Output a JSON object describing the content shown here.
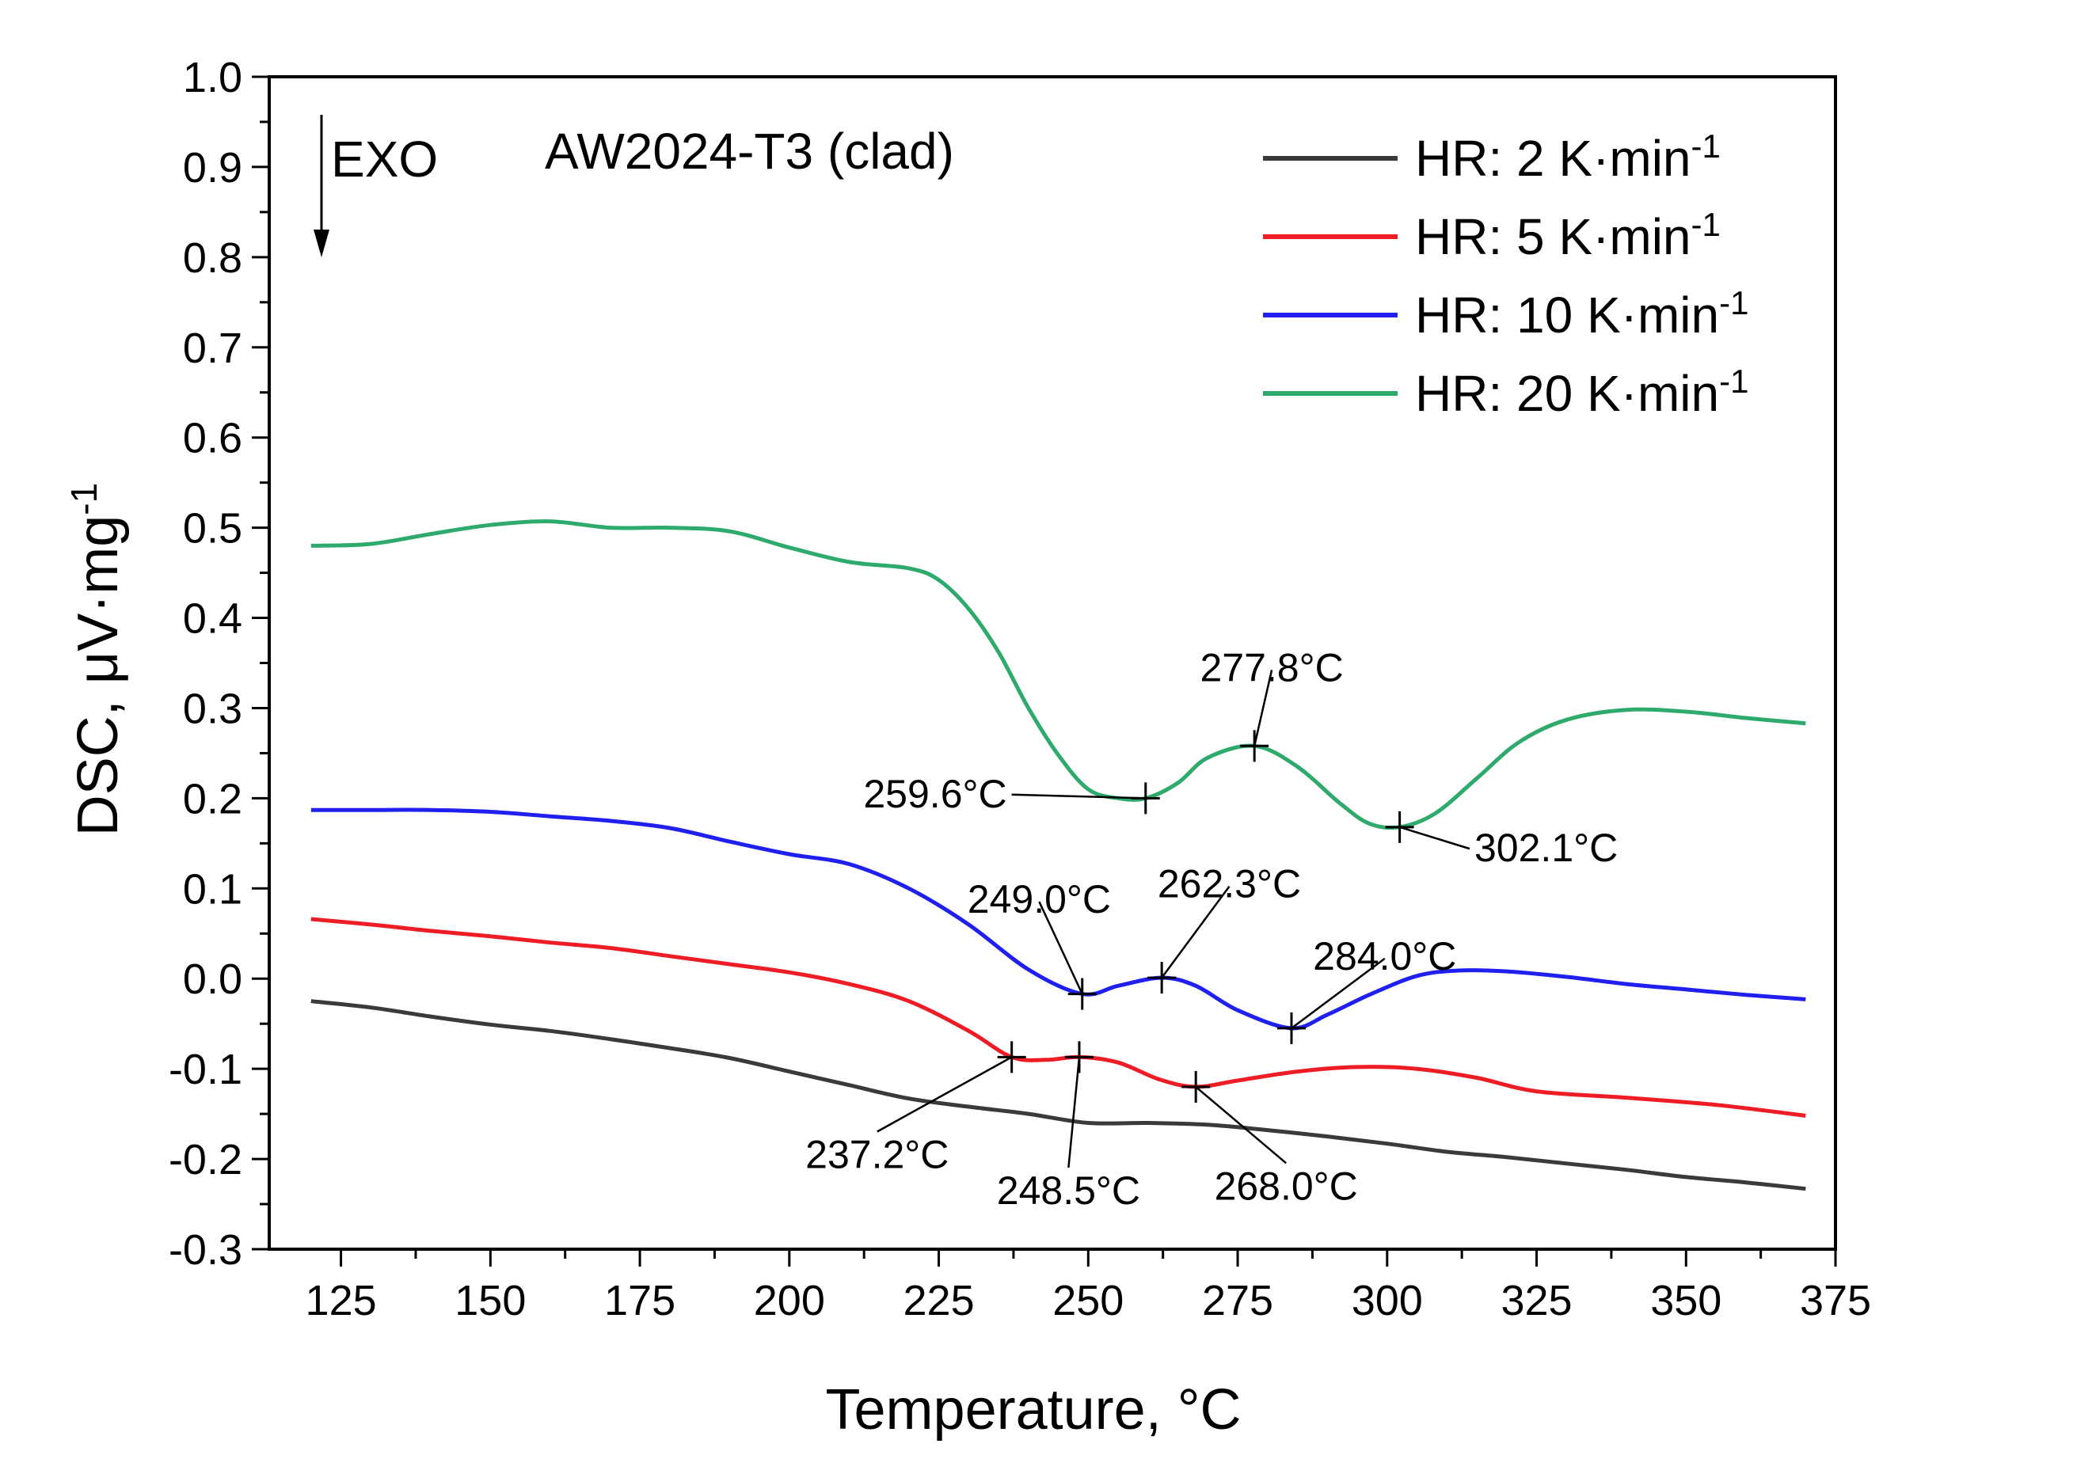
{
  "chart_data": {
    "type": "line",
    "title": "AW2024-T3 (clad)",
    "exo_label": "EXO",
    "xlabel": "Temperature, °C",
    "ylabel": {
      "base": "DSC, μV·mg",
      "sup": "-1"
    },
    "xlim": [
      113,
      375
    ],
    "ylim": [
      -0.3,
      1.0
    ],
    "xticks": [
      125,
      150,
      175,
      200,
      225,
      250,
      275,
      300,
      325,
      350,
      375
    ],
    "yticks": [
      -0.3,
      -0.2,
      -0.1,
      0.0,
      0.1,
      0.2,
      0.3,
      0.4,
      0.5,
      0.6,
      0.7,
      0.8,
      0.9,
      1.0
    ],
    "ytick_labels": [
      "-0.3",
      "-0.2",
      "-0.1",
      "0.0",
      "0.1",
      "0.2",
      "0.3",
      "0.4",
      "0.5",
      "0.6",
      "0.7",
      "0.8",
      "0.9",
      "1.0"
    ],
    "legend_position": "top-right",
    "series": [
      {
        "name": "HR: 2 K·min",
        "sup": "-1",
        "color": "#3a3a3a",
        "points": [
          [
            120,
            -0.025
          ],
          [
            130,
            -0.032
          ],
          [
            140,
            -0.042
          ],
          [
            150,
            -0.051
          ],
          [
            160,
            -0.058
          ],
          [
            170,
            -0.067
          ],
          [
            180,
            -0.077
          ],
          [
            190,
            -0.088
          ],
          [
            200,
            -0.103
          ],
          [
            210,
            -0.118
          ],
          [
            220,
            -0.133
          ],
          [
            230,
            -0.142
          ],
          [
            240,
            -0.15
          ],
          [
            250,
            -0.16
          ],
          [
            260,
            -0.16
          ],
          [
            270,
            -0.162
          ],
          [
            280,
            -0.168
          ],
          [
            290,
            -0.175
          ],
          [
            300,
            -0.183
          ],
          [
            310,
            -0.192
          ],
          [
            320,
            -0.198
          ],
          [
            330,
            -0.205
          ],
          [
            340,
            -0.212
          ],
          [
            350,
            -0.22
          ],
          [
            360,
            -0.226
          ],
          [
            370,
            -0.233
          ]
        ]
      },
      {
        "name": "HR: 5 K·min",
        "sup": "-1",
        "color": "#ee1c24",
        "points": [
          [
            120,
            0.066
          ],
          [
            130,
            0.06
          ],
          [
            140,
            0.053
          ],
          [
            150,
            0.047
          ],
          [
            160,
            0.04
          ],
          [
            170,
            0.034
          ],
          [
            180,
            0.025
          ],
          [
            190,
            0.016
          ],
          [
            200,
            0.007
          ],
          [
            210,
            -0.006
          ],
          [
            220,
            -0.025
          ],
          [
            230,
            -0.058
          ],
          [
            237.2,
            -0.087
          ],
          [
            243,
            -0.09
          ],
          [
            248.5,
            -0.087
          ],
          [
            255,
            -0.093
          ],
          [
            262,
            -0.112
          ],
          [
            268,
            -0.12
          ],
          [
            275,
            -0.113
          ],
          [
            285,
            -0.103
          ],
          [
            295,
            -0.098
          ],
          [
            305,
            -0.1
          ],
          [
            315,
            -0.11
          ],
          [
            325,
            -0.125
          ],
          [
            340,
            -0.132
          ],
          [
            355,
            -0.14
          ],
          [
            370,
            -0.152
          ]
        ]
      },
      {
        "name": "HR: 10 K·min",
        "sup": "-1",
        "color": "#1f1ff0",
        "points": [
          [
            120,
            0.187
          ],
          [
            130,
            0.187
          ],
          [
            140,
            0.187
          ],
          [
            150,
            0.185
          ],
          [
            160,
            0.18
          ],
          [
            170,
            0.175
          ],
          [
            180,
            0.167
          ],
          [
            190,
            0.152
          ],
          [
            200,
            0.138
          ],
          [
            210,
            0.127
          ],
          [
            220,
            0.1
          ],
          [
            230,
            0.06
          ],
          [
            240,
            0.01
          ],
          [
            249,
            -0.017
          ],
          [
            255,
            -0.008
          ],
          [
            262.3,
            0.001
          ],
          [
            268,
            -0.008
          ],
          [
            275,
            -0.035
          ],
          [
            284,
            -0.055
          ],
          [
            290,
            -0.04
          ],
          [
            297,
            -0.018
          ],
          [
            305,
            0.003
          ],
          [
            312,
            0.009
          ],
          [
            320,
            0.008
          ],
          [
            330,
            0.002
          ],
          [
            340,
            -0.006
          ],
          [
            350,
            -0.012
          ],
          [
            360,
            -0.018
          ],
          [
            370,
            -0.023
          ]
        ]
      },
      {
        "name": "HR: 20 K·min",
        "sup": "-1",
        "color": "#2eaa6c",
        "points": [
          [
            120,
            0.48
          ],
          [
            130,
            0.482
          ],
          [
            140,
            0.493
          ],
          [
            150,
            0.503
          ],
          [
            160,
            0.507
          ],
          [
            170,
            0.5
          ],
          [
            180,
            0.5
          ],
          [
            190,
            0.496
          ],
          [
            200,
            0.478
          ],
          [
            210,
            0.462
          ],
          [
            220,
            0.455
          ],
          [
            225,
            0.442
          ],
          [
            230,
            0.41
          ],
          [
            235,
            0.362
          ],
          [
            240,
            0.3
          ],
          [
            245,
            0.248
          ],
          [
            250,
            0.21
          ],
          [
            255,
            0.2
          ],
          [
            259.6,
            0.2
          ],
          [
            265,
            0.217
          ],
          [
            270,
            0.245
          ],
          [
            277.8,
            0.258
          ],
          [
            285,
            0.235
          ],
          [
            292,
            0.195
          ],
          [
            297,
            0.172
          ],
          [
            302.1,
            0.168
          ],
          [
            308,
            0.183
          ],
          [
            315,
            0.222
          ],
          [
            322,
            0.262
          ],
          [
            330,
            0.287
          ],
          [
            340,
            0.298
          ],
          [
            350,
            0.296
          ],
          [
            360,
            0.289
          ],
          [
            370,
            0.283
          ]
        ]
      }
    ],
    "annotations": [
      {
        "label": "277.8°C",
        "x": 277.8,
        "y": 0.258,
        "tx": 280.7,
        "ty": 0.33,
        "anchor": "middle"
      },
      {
        "label": "259.6°C",
        "x": 259.6,
        "y": 0.2,
        "tx": 236.4,
        "ty": 0.19,
        "anchor": "end"
      },
      {
        "label": "302.1°C",
        "x": 302.1,
        "y": 0.168,
        "tx": 314.6,
        "ty": 0.13,
        "anchor": "start"
      },
      {
        "label": "249.0°C",
        "x": 249.0,
        "y": -0.017,
        "tx": 241.8,
        "ty": 0.073,
        "anchor": "middle"
      },
      {
        "label": "262.3°C",
        "x": 262.3,
        "y": 0.001,
        "tx": 273.6,
        "ty": 0.09,
        "anchor": "middle"
      },
      {
        "label": "284.0°C",
        "x": 284.0,
        "y": -0.055,
        "tx": 299.6,
        "ty": 0.01,
        "anchor": "middle"
      },
      {
        "label": "237.2°C",
        "x": 237.2,
        "y": -0.087,
        "tx": 214.7,
        "ty": -0.21,
        "anchor": "middle"
      },
      {
        "label": "248.5°C",
        "x": 248.5,
        "y": -0.087,
        "tx": 246.7,
        "ty": -0.25,
        "anchor": "middle"
      },
      {
        "label": "268.0°C",
        "x": 268.0,
        "y": -0.12,
        "tx": 283.1,
        "ty": -0.245,
        "anchor": "middle"
      }
    ]
  }
}
